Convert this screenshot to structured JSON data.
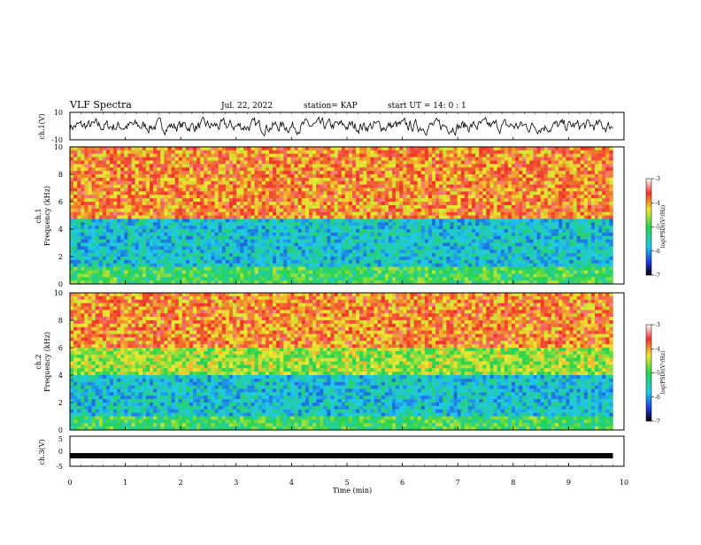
{
  "header": {
    "title": "VLF Spectra",
    "date": "Jul. 22, 2022",
    "station": "station= KAP",
    "start_ut": "start UT =  14: 0 : 1"
  },
  "colors": {
    "spectrum_low": "#1a2fd0",
    "spectrum_mid": "#27d44a",
    "spectrum_high": "#f0302a",
    "trace": "#000000"
  },
  "chart_data": [
    {
      "id": "ch1-voltage",
      "type": "line",
      "ylabel": "ch.1(V)",
      "ylim": [
        -10,
        10
      ],
      "yticks": [
        "10",
        "-10"
      ],
      "xlim": [
        0,
        10
      ],
      "description_series": "noisy waveform fluctuating roughly between -6 and +5 V over 0 to 9.8 min"
    },
    {
      "id": "ch1-spectrogram",
      "type": "heatmap",
      "ylabel": "Frequency (kHz)",
      "channel_label": "ch.1",
      "ylim": [
        0,
        10
      ],
      "yticks": [
        "0",
        "2",
        "4",
        "6",
        "8",
        "10"
      ],
      "xlim": [
        0,
        10
      ],
      "colorbar": {
        "label": "log(PSD)(V²/Hz)",
        "ticks": [
          "-3",
          "-4",
          "-5",
          "-6",
          "-7"
        ],
        "range": [
          -7,
          -3
        ]
      },
      "bands": [
        {
          "f_min": 0,
          "f_max": 1.2,
          "level": -5.0
        },
        {
          "f_min": 1.2,
          "f_max": 4.8,
          "level": -5.7
        },
        {
          "f_min": 4.8,
          "f_max": 10,
          "level": -3.9
        }
      ]
    },
    {
      "id": "ch2-spectrogram",
      "type": "heatmap",
      "ylabel": "Frequency (kHz)",
      "channel_label": "ch.2",
      "ylim": [
        0,
        10
      ],
      "yticks": [
        "0",
        "2",
        "4",
        "6",
        "8",
        "10"
      ],
      "xlim": [
        0,
        10
      ],
      "colorbar": {
        "label": "log(PSD)(V²/Hz)",
        "ticks": [
          "-3",
          "-4",
          "-5",
          "-6",
          "-7"
        ],
        "range": [
          -7,
          -3
        ]
      },
      "bands": [
        {
          "f_min": 0,
          "f_max": 1.0,
          "level": -5.0
        },
        {
          "f_min": 1.0,
          "f_max": 4.0,
          "level": -5.7
        },
        {
          "f_min": 4.0,
          "f_max": 6.0,
          "level": -4.6
        },
        {
          "f_min": 6.0,
          "f_max": 10,
          "level": -3.9
        }
      ]
    },
    {
      "id": "ch3-voltage",
      "type": "line",
      "ylabel": "ch.3(V)",
      "ylim": [
        -5,
        5
      ],
      "yticks": [
        "5",
        "0",
        "-5"
      ],
      "xlim": [
        0,
        10
      ],
      "level_volts": -1.5
    }
  ],
  "xaxis": {
    "label": "Time (min)",
    "ticks": [
      "0",
      "1",
      "2",
      "3",
      "4",
      "5",
      "6",
      "7",
      "8",
      "9",
      "10"
    ]
  }
}
